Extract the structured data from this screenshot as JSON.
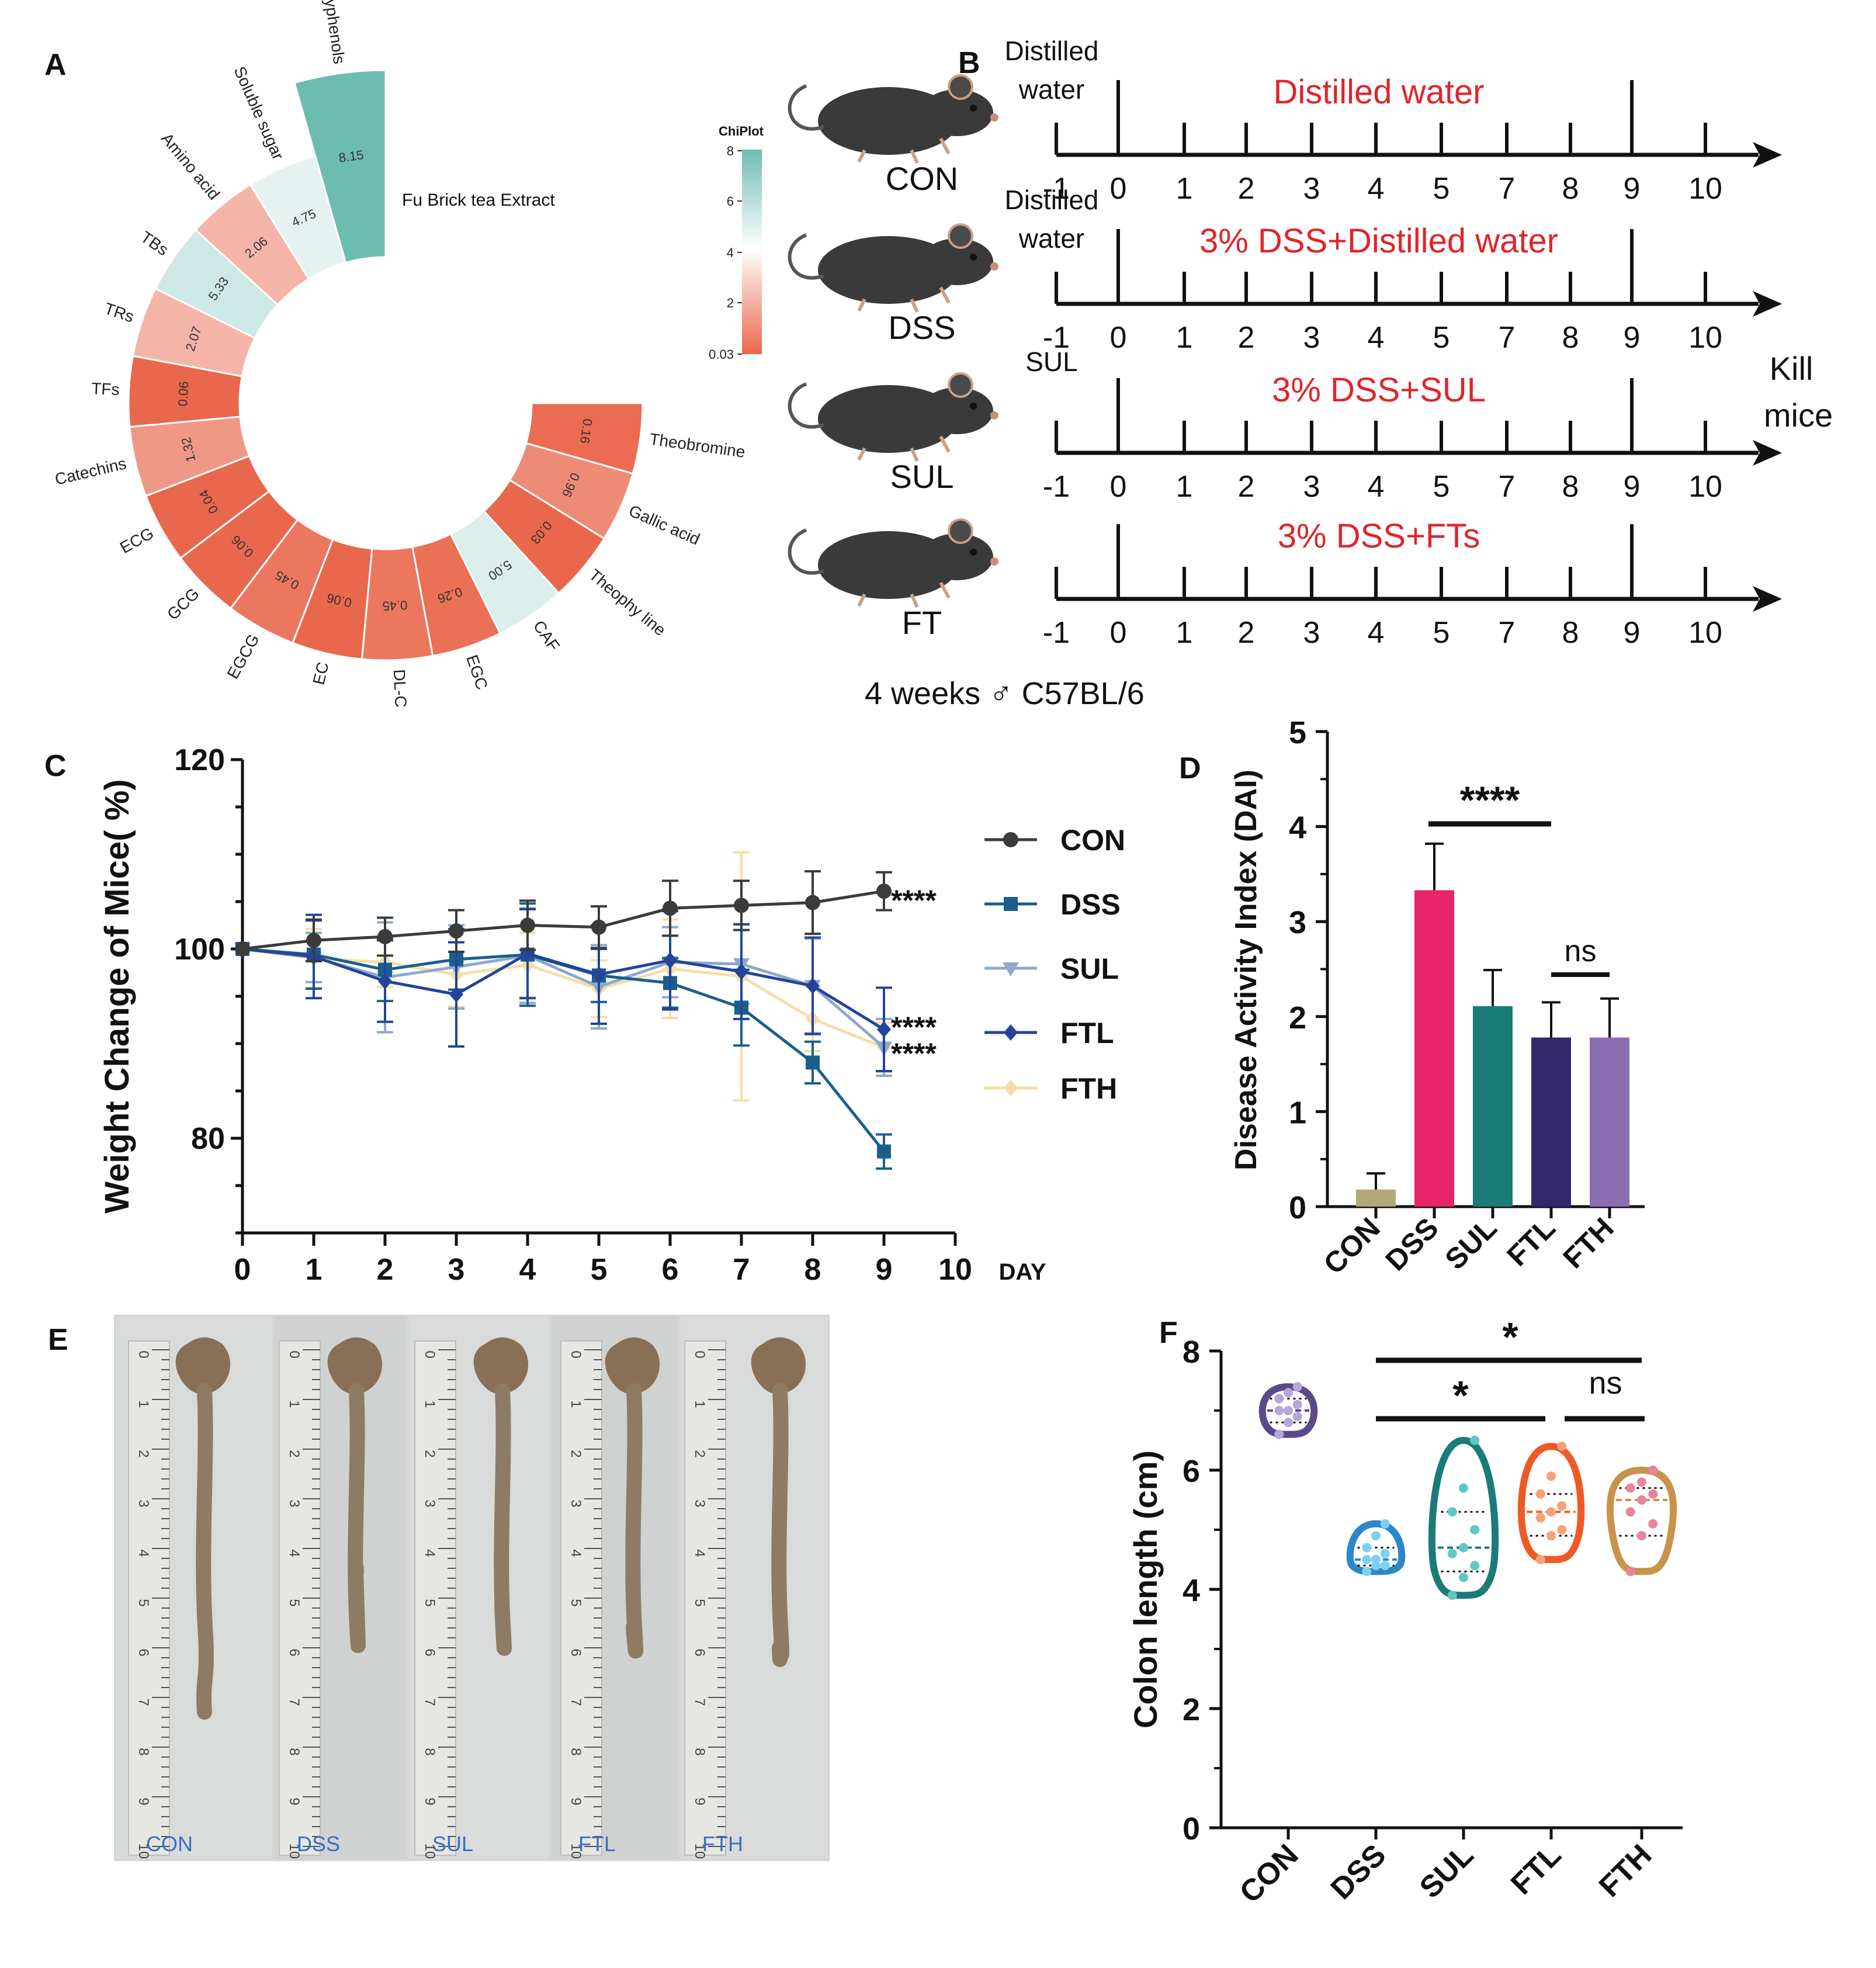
{
  "panels": {
    "A": {
      "label": "A"
    },
    "B": {
      "label": "B"
    },
    "C": {
      "label": "C"
    },
    "D": {
      "label": "D"
    },
    "E": {
      "label": "E"
    },
    "F": {
      "label": "F"
    }
  },
  "chart_data": [
    {
      "id": "A",
      "type": "radial-bar",
      "title": "",
      "center_label": "Fu Brick tea Extract",
      "color_scale": {
        "title": "ChiPlot",
        "ticks": [
          "8",
          "6",
          "4",
          "2",
          "0.03"
        ],
        "low": "#e9674c",
        "mid": "#ffffff",
        "high": "#6dbcb0"
      },
      "categories": [
        "Polyphenols",
        "Soluble sugar",
        "Amino acid",
        "TBs",
        "TRs",
        "TFs",
        "Catechins",
        "ECG",
        "GCG",
        "EGCG",
        "EC",
        "DL-C",
        "EGC",
        "CAF",
        "Theophy line",
        "Gallic acid",
        "Theobromine"
      ],
      "values": [
        8.15,
        4.75,
        2.06,
        5.33,
        2.07,
        0.06,
        1.32,
        0.04,
        0.06,
        0.45,
        0.06,
        0.45,
        0.26,
        5.0,
        0.03,
        0.96,
        0.16
      ],
      "value_labels": [
        "8.15",
        "4.75",
        "2.06",
        "5.33",
        "2.07",
        "0.06",
        "1.32",
        "0.04",
        "0.06",
        "0.45",
        "0.06",
        "0.45",
        "0.26",
        "5.00",
        "0.03",
        "0.96",
        "0.16"
      ]
    },
    {
      "id": "B",
      "type": "timeline",
      "days": [
        "-1",
        "0",
        "1",
        "2",
        "3",
        "4",
        "5",
        "7",
        "8",
        "9",
        "10"
      ],
      "groups": [
        {
          "name": "CON",
          "pre": "Distilled\nwater",
          "pre_lines": [
            "Distilled",
            "water"
          ],
          "treatment": "Distilled water"
        },
        {
          "name": "DSS",
          "pre": "Distilled\nwater",
          "pre_lines": [
            "Distilled",
            "water"
          ],
          "treatment": "3% DSS+Distilled water"
        },
        {
          "name": "SUL",
          "pre": "SUL",
          "pre_lines": [
            "SUL"
          ],
          "treatment": "3% DSS+SUL"
        },
        {
          "name": "FT",
          "pre": "",
          "pre_lines": [],
          "treatment": "3% DSS+FTs"
        }
      ],
      "end_note": [
        "Kill",
        "mice"
      ],
      "subject_note": "4 weeks ♂ C57BL/6",
      "treatment_color": "#e0242a"
    },
    {
      "id": "C",
      "type": "line",
      "ylabel": "Weight Change of Mice( %)",
      "xlabel": "DAY",
      "x": [
        0,
        1,
        2,
        3,
        4,
        5,
        6,
        7,
        8,
        9
      ],
      "x_ticks": [
        "0",
        "1",
        "2",
        "3",
        "4",
        "5",
        "6",
        "7",
        "8",
        "9",
        "10"
      ],
      "ylim": [
        70,
        120
      ],
      "xlim": [
        0,
        10
      ],
      "y_ticks": [
        "80",
        "100",
        "120"
      ],
      "series": [
        {
          "name": "CON",
          "color": "#3b3b3b",
          "marker": "circle",
          "values": [
            100,
            100.9,
            101.3,
            101.9,
            102.5,
            102.3,
            104.3,
            104.6,
            104.9,
            106.1
          ],
          "err": [
            0,
            2.2,
            2.0,
            2.2,
            2.6,
            2.2,
            2.9,
            2.6,
            3.3,
            2.0
          ]
        },
        {
          "name": "DSS",
          "color": "#1a5f8c",
          "marker": "square",
          "values": [
            100,
            99.4,
            97.8,
            98.9,
            99.4,
            97.2,
            96.4,
            93.8,
            88.0,
            78.6
          ],
          "err": [
            0,
            3.6,
            3.3,
            3.2,
            5.4,
            2.8,
            2.6,
            4.0,
            2.2,
            1.8
          ]
        },
        {
          "name": "SUL",
          "color": "#8fa8cc",
          "marker": "triangle-down",
          "values": [
            100,
            99.1,
            97.0,
            98.1,
            99.3,
            96.0,
            98.6,
            98.4,
            96.1,
            89.6
          ],
          "err": [
            0,
            2.6,
            5.8,
            4.4,
            5.0,
            4.4,
            3.7,
            4.2,
            5.0,
            3.0
          ]
        },
        {
          "name": "FTL",
          "color": "#23449a",
          "marker": "diamond",
          "values": [
            100,
            99.2,
            96.6,
            95.2,
            99.5,
            97.3,
            98.8,
            97.6,
            96.1,
            91.5
          ],
          "err": [
            0,
            4.4,
            4.3,
            5.5,
            4.7,
            5.2,
            5.2,
            5.0,
            5.1,
            4.4
          ]
        },
        {
          "name": "FTH",
          "color": "#f3dfa6",
          "marker": "diamond",
          "values": [
            100,
            99.0,
            98.6,
            97.3,
            98.3,
            95.8,
            97.9,
            97.1,
            92.6,
            89.6
          ],
          "err": [
            0,
            3.1,
            2.6,
            3.4,
            3.4,
            3.0,
            5.2,
            13.1,
            3.4,
            2.6
          ]
        }
      ],
      "annotations": [
        {
          "text": "****",
          "series": "CON",
          "x": 9
        },
        {
          "text": "****",
          "series": "FTL",
          "x": 9
        },
        {
          "text": "****",
          "series": "SUL",
          "x": 9
        }
      ]
    },
    {
      "id": "D",
      "type": "bar",
      "ylabel": "Disease Activity Index (DAI)",
      "categories": [
        "CON",
        "DSS",
        "SUL",
        "FTL",
        "FTH"
      ],
      "values": [
        0.18,
        3.33,
        2.11,
        1.78,
        1.78
      ],
      "err": [
        0.17,
        0.49,
        0.38,
        0.37,
        0.41
      ],
      "colors": [
        "#b1a97a",
        "#e8246a",
        "#1b7b79",
        "#33286a",
        "#8b6cb3"
      ],
      "ylim": [
        0,
        5
      ],
      "y_ticks": [
        "0",
        "1",
        "2",
        "3",
        "4",
        "5"
      ],
      "significance": [
        {
          "from": "DSS",
          "to": "FTL",
          "text": "****"
        },
        {
          "from": "FTL",
          "to": "FTH",
          "text": "ns"
        }
      ]
    },
    {
      "id": "E",
      "type": "image",
      "description_labels": [
        "CON",
        "DSS",
        "SUL",
        "FTL",
        "FTH"
      ],
      "ruler_ticks": [
        "0",
        "1",
        "2",
        "3",
        "4",
        "5",
        "6",
        "7",
        "8",
        "9",
        "10"
      ],
      "ruler_unit": "cm"
    },
    {
      "id": "F",
      "type": "violin",
      "ylabel": "Colon length (cm)",
      "categories": [
        "CON",
        "DSS",
        "SUL",
        "FTL",
        "FTH"
      ],
      "ylim": [
        0,
        8
      ],
      "y_ticks": [
        "0",
        "2",
        "4",
        "6",
        "8"
      ],
      "colors": [
        "#5b4a8b",
        "#2a88c8",
        "#1b7b79",
        "#ef5a24",
        "#c8934a"
      ],
      "point_colors": [
        "#b7a6d8",
        "#7fd0f0",
        "#5fc8c2",
        "#f7a07a",
        "#e8849a"
      ],
      "distributions": [
        {
          "name": "CON",
          "median": 7.0,
          "q1": 6.8,
          "q3": 7.2,
          "min": 6.6,
          "max": 7.4,
          "points": [
            6.6,
            6.8,
            6.9,
            7.0,
            7.0,
            7.1,
            7.2,
            7.3,
            7.4
          ]
        },
        {
          "name": "DSS",
          "median": 4.5,
          "q1": 4.4,
          "q3": 4.7,
          "min": 4.3,
          "max": 5.1,
          "points": [
            4.3,
            4.4,
            4.4,
            4.5,
            4.5,
            4.6,
            4.7,
            4.9,
            5.1
          ]
        },
        {
          "name": "SUL",
          "median": 4.7,
          "q1": 4.3,
          "q3": 5.3,
          "min": 3.9,
          "max": 6.5,
          "points": [
            3.9,
            4.2,
            4.4,
            4.6,
            4.7,
            5.0,
            5.3,
            5.7,
            6.5
          ]
        },
        {
          "name": "FTL",
          "median": 5.3,
          "q1": 4.9,
          "q3": 5.6,
          "min": 4.5,
          "max": 6.4,
          "points": [
            4.5,
            4.9,
            5.0,
            5.2,
            5.3,
            5.4,
            5.6,
            5.9,
            6.4
          ]
        },
        {
          "name": "FTH",
          "median": 5.5,
          "q1": 4.9,
          "q3": 5.7,
          "min": 4.3,
          "max": 6.0,
          "points": [
            4.3,
            4.9,
            5.1,
            5.3,
            5.5,
            5.6,
            5.7,
            5.8,
            6.0
          ]
        }
      ],
      "significance": [
        {
          "from": "DSS",
          "to": "FTH",
          "text": "*"
        },
        {
          "from": "DSS",
          "to": "FTL",
          "text": "*"
        },
        {
          "from": "FTL",
          "to": "FTH",
          "text": "ns"
        }
      ]
    }
  ]
}
